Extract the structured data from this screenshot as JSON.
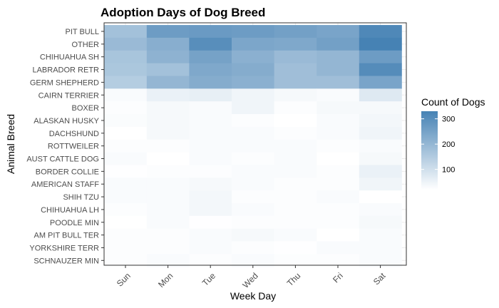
{
  "chart_data": {
    "type": "heatmap",
    "title": "Adoption Days of Dog Breed",
    "xlabel": "Week Day",
    "ylabel": "Animal Breed",
    "x_categories": [
      "Sun",
      "Mon",
      "Tue",
      "Wed",
      "Thu",
      "Fri",
      "Sat"
    ],
    "y_categories": [
      "PIT BULL",
      "OTHER",
      "CHIHUAHUA SH",
      "LABRADOR RETR",
      "GERM SHEPHERD",
      "CAIRN TERRIER",
      "BOXER",
      "ALASKAN HUSKY",
      "DACHSHUND",
      "ROTTWEILER",
      "AUST CATTLE DOG",
      "BORDER COLLIE",
      "AMERICAN STAFF",
      "SHIH TZU",
      "CHIHUAHUA LH",
      "POODLE MIN",
      "AM PIT BULL TER",
      "YORKSHIRE TERR",
      "SCHNAUZER MIN"
    ],
    "values": [
      [
        175,
        265,
        270,
        265,
        255,
        245,
        315
      ],
      [
        190,
        220,
        300,
        240,
        235,
        255,
        330
      ],
      [
        165,
        210,
        250,
        215,
        190,
        200,
        265
      ],
      [
        160,
        175,
        235,
        225,
        180,
        200,
        305
      ],
      [
        145,
        200,
        225,
        215,
        180,
        180,
        245
      ],
      [
        30,
        55,
        60,
        45,
        35,
        30,
        75
      ],
      [
        25,
        35,
        30,
        45,
        25,
        35,
        35
      ],
      [
        28,
        35,
        30,
        25,
        20,
        30,
        40
      ],
      [
        20,
        35,
        30,
        30,
        25,
        30,
        45
      ],
      [
        25,
        25,
        30,
        30,
        30,
        25,
        30
      ],
      [
        30,
        20,
        30,
        25,
        30,
        20,
        35
      ],
      [
        22,
        25,
        25,
        30,
        30,
        25,
        55
      ],
      [
        30,
        30,
        35,
        30,
        25,
        25,
        45
      ],
      [
        30,
        30,
        40,
        25,
        25,
        30,
        20
      ],
      [
        25,
        30,
        40,
        30,
        25,
        25,
        30
      ],
      [
        20,
        30,
        22,
        25,
        25,
        25,
        35
      ],
      [
        25,
        25,
        30,
        35,
        30,
        20,
        30
      ],
      [
        25,
        25,
        30,
        25,
        22,
        30,
        30
      ],
      [
        25,
        30,
        25,
        30,
        25,
        25,
        30
      ]
    ],
    "legend": {
      "title": "Count of Dogs",
      "ticks": [
        100,
        200,
        300
      ],
      "range": [
        20,
        330
      ],
      "low_color": "#ffffff",
      "high_color": "#4682b4",
      "position": "right"
    },
    "grid": true
  }
}
